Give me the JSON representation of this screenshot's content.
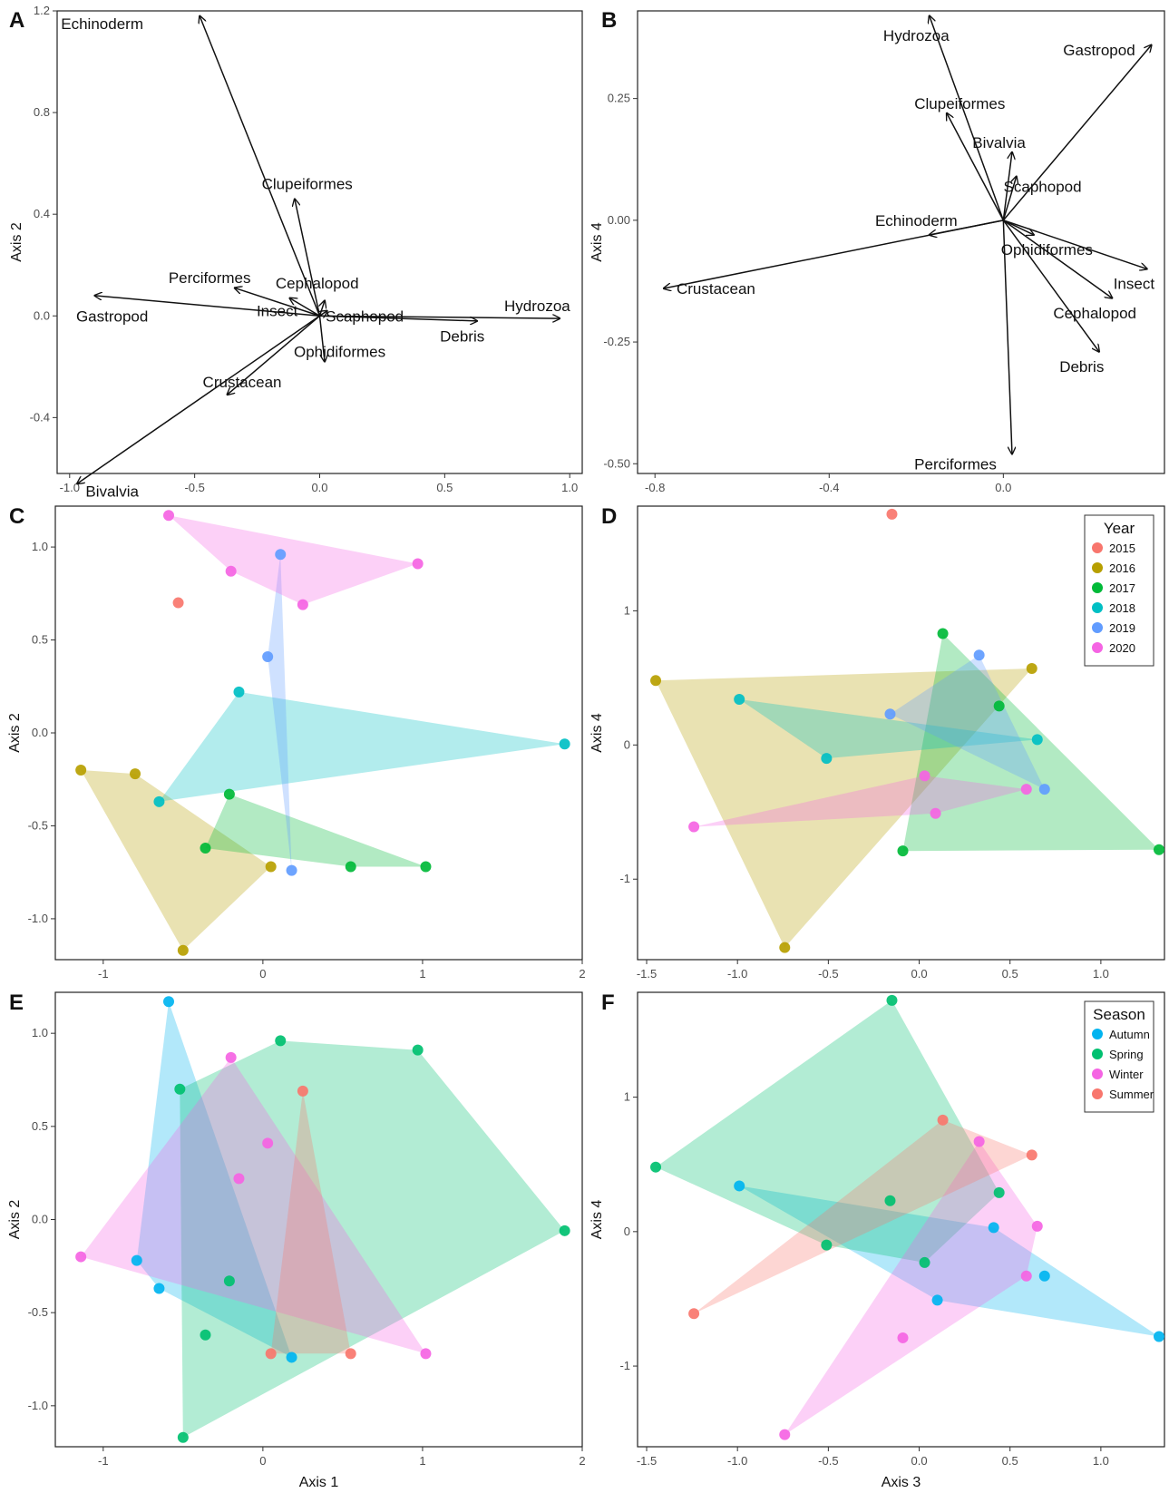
{
  "chart_data": [
    {
      "panel": "A",
      "type": "biplot",
      "xlabel": "",
      "ylabel": "Axis 2",
      "xlim": [
        -1.05,
        1.05
      ],
      "ylim": [
        -0.62,
        1.2
      ],
      "xticks": [
        -1.0,
        -0.5,
        0.0,
        0.5,
        1.0
      ],
      "xtick_labels": [
        "-1.0",
        "-0.5",
        "0.0",
        "0.5",
        "1.0"
      ],
      "yticks": [
        -0.4,
        0.0,
        0.4,
        0.8,
        1.2
      ],
      "ytick_labels": [
        "-0.4",
        "0.0",
        "0.4",
        "0.8",
        "1.2"
      ],
      "vectors": [
        {
          "label": "Echinoderm",
          "x": -0.48,
          "y": 1.18,
          "lx": -0.87,
          "ly": 1.15
        },
        {
          "label": "Clupeiformes",
          "x": -0.1,
          "y": 0.46,
          "lx": -0.05,
          "ly": 0.52
        },
        {
          "label": "Perciformes",
          "x": -0.34,
          "y": 0.11,
          "lx": -0.44,
          "ly": 0.15
        },
        {
          "label": "Cephalopod",
          "x": 0.02,
          "y": 0.06,
          "lx": -0.01,
          "ly": 0.13
        },
        {
          "label": "Insect",
          "x": -0.12,
          "y": 0.07,
          "lx": -0.17,
          "ly": 0.02
        },
        {
          "label": "Gastropod",
          "x": -0.9,
          "y": 0.08,
          "lx": -0.83,
          "ly": 0.0
        },
        {
          "label": "Scaphopod",
          "x": 0.03,
          "y": 0.02,
          "lx": 0.18,
          "ly": 0.0
        },
        {
          "label": "Hydrozoa",
          "x": 0.96,
          "y": -0.01,
          "lx": 0.87,
          "ly": 0.04
        },
        {
          "label": "Debris",
          "x": 0.63,
          "y": -0.02,
          "lx": 0.57,
          "ly": -0.08
        },
        {
          "label": "Ophidiformes",
          "x": 0.02,
          "y": -0.18,
          "lx": 0.08,
          "ly": -0.14
        },
        {
          "label": "Crustacean",
          "x": -0.37,
          "y": -0.31,
          "lx": -0.31,
          "ly": -0.26
        },
        {
          "label": "Bivalvia",
          "x": -0.97,
          "y": -0.66,
          "lx": -0.83,
          "ly": -0.69
        }
      ]
    },
    {
      "panel": "B",
      "type": "biplot",
      "xlabel": "",
      "ylabel": "Axis 4",
      "xlim": [
        -0.84,
        0.37
      ],
      "ylim": [
        -0.52,
        0.43
      ],
      "xticks": [
        -0.8,
        -0.4,
        0.0
      ],
      "xtick_labels": [
        "-0.8",
        "-0.4",
        "0.0"
      ],
      "yticks": [
        -0.5,
        -0.25,
        0.0,
        0.25
      ],
      "ytick_labels": [
        "-0.50",
        "-0.25",
        "0.00",
        "0.25"
      ],
      "vectors": [
        {
          "label": "Hydrozoa",
          "x": -0.17,
          "y": 0.42,
          "lx": -0.2,
          "ly": 0.38
        },
        {
          "label": "Gastropod",
          "x": 0.34,
          "y": 0.36,
          "lx": 0.22,
          "ly": 0.35
        },
        {
          "label": "Clupeiformes",
          "x": -0.13,
          "y": 0.22,
          "lx": -0.1,
          "ly": 0.24
        },
        {
          "label": "Bivalvia",
          "x": 0.02,
          "y": 0.14,
          "lx": -0.01,
          "ly": 0.16
        },
        {
          "label": "Scaphopod",
          "x": 0.03,
          "y": 0.09,
          "lx": 0.09,
          "ly": 0.07
        },
        {
          "label": "Echinoderm",
          "x": -0.17,
          "y": -0.03,
          "lx": -0.2,
          "ly": 0.0
        },
        {
          "label": "Ophidiformes",
          "x": 0.07,
          "y": -0.03,
          "lx": 0.1,
          "ly": -0.06
        },
        {
          "label": "Crustacean",
          "x": -0.78,
          "y": -0.14,
          "lx": -0.66,
          "ly": -0.14
        },
        {
          "label": "Insect",
          "x": 0.33,
          "y": -0.1,
          "lx": 0.3,
          "ly": -0.13
        },
        {
          "label": "Cephalopod",
          "x": 0.25,
          "y": -0.16,
          "lx": 0.21,
          "ly": -0.19
        },
        {
          "label": "Debris",
          "x": 0.22,
          "y": -0.27,
          "lx": 0.18,
          "ly": -0.3
        },
        {
          "label": "Perciformes",
          "x": 0.02,
          "y": -0.48,
          "lx": -0.11,
          "ly": -0.5
        }
      ]
    },
    {
      "panel": "C",
      "type": "scatter",
      "xlabel": "",
      "ylabel": "Axis 2",
      "xlim": [
        -1.3,
        2.0
      ],
      "ylim": [
        -1.22,
        1.22
      ],
      "xticks": [
        -1,
        0,
        1,
        2
      ],
      "xtick_labels": [
        "-1",
        "0",
        "1",
        "2"
      ],
      "yticks": [
        -1.0,
        -0.5,
        0.0,
        0.5,
        1.0
      ],
      "ytick_labels": [
        "-1.0",
        "-0.5",
        "0.0",
        "0.5",
        "1.0"
      ],
      "series": [
        {
          "name": "2015",
          "color": "#F8766D",
          "points": [
            [
              -0.53,
              0.7
            ]
          ],
          "hull": false
        },
        {
          "name": "2016",
          "color": "#B79F00",
          "points": [
            [
              -1.14,
              -0.2
            ],
            [
              -0.8,
              -0.22
            ],
            [
              0.05,
              -0.72
            ],
            [
              -0.5,
              -1.17
            ]
          ],
          "hull": true
        },
        {
          "name": "2017",
          "color": "#00BA38",
          "points": [
            [
              -0.21,
              -0.33
            ],
            [
              -0.36,
              -0.62
            ],
            [
              0.55,
              -0.72
            ],
            [
              1.02,
              -0.72
            ]
          ],
          "hull": true
        },
        {
          "name": "2018",
          "color": "#00BFC4",
          "points": [
            [
              -0.15,
              0.22
            ],
            [
              1.89,
              -0.06
            ],
            [
              -0.65,
              -0.37
            ]
          ],
          "hull": true
        },
        {
          "name": "2019",
          "color": "#619CFF",
          "points": [
            [
              0.11,
              0.96
            ],
            [
              0.03,
              0.41
            ],
            [
              0.18,
              -0.74
            ]
          ],
          "hull": true
        },
        {
          "name": "2020",
          "color": "#F564E3",
          "points": [
            [
              -0.59,
              1.17
            ],
            [
              -0.2,
              0.87
            ],
            [
              0.97,
              0.91
            ],
            [
              0.25,
              0.69
            ]
          ],
          "hull": true
        }
      ]
    },
    {
      "panel": "D",
      "type": "scatter",
      "xlabel": "",
      "ylabel": "Axis 4",
      "xlim": [
        -1.55,
        1.35
      ],
      "ylim": [
        -1.6,
        1.78
      ],
      "xticks": [
        -1.5,
        -1.0,
        -0.5,
        0.0,
        0.5,
        1.0
      ],
      "xtick_labels": [
        "-1.5",
        "-1.0",
        "-0.5",
        "0.0",
        "0.5",
        "1.0"
      ],
      "yticks": [
        -1,
        0,
        1
      ],
      "ytick_labels": [
        "-1",
        "0",
        "1"
      ],
      "legend": {
        "title": "Year",
        "position": "top-right"
      },
      "series": [
        {
          "name": "2015",
          "color": "#F8766D",
          "points": [
            [
              -0.15,
              1.72
            ]
          ],
          "hull": false
        },
        {
          "name": "2016",
          "color": "#B79F00",
          "points": [
            [
              -1.45,
              0.48
            ],
            [
              0.62,
              0.57
            ],
            [
              -0.74,
              -1.51
            ]
          ],
          "hull": true
        },
        {
          "name": "2017",
          "color": "#00BA38",
          "points": [
            [
              0.13,
              0.83
            ],
            [
              0.44,
              0.29
            ],
            [
              1.32,
              -0.78
            ],
            [
              -0.09,
              -0.79
            ]
          ],
          "hull": true
        },
        {
          "name": "2018",
          "color": "#00BFC4",
          "points": [
            [
              -0.99,
              0.34
            ],
            [
              0.65,
              0.04
            ],
            [
              -0.51,
              -0.1
            ]
          ],
          "hull": true
        },
        {
          "name": "2019",
          "color": "#619CFF",
          "points": [
            [
              0.33,
              0.67
            ],
            [
              -0.16,
              0.23
            ],
            [
              0.69,
              -0.33
            ]
          ],
          "hull": true
        },
        {
          "name": "2020",
          "color": "#F564E3",
          "points": [
            [
              -1.24,
              -0.61
            ],
            [
              0.03,
              -0.23
            ],
            [
              0.59,
              -0.33
            ],
            [
              0.09,
              -0.51
            ]
          ],
          "hull": true
        }
      ]
    },
    {
      "panel": "E",
      "type": "scatter",
      "xlabel": "Axis 1",
      "ylabel": "Axis 2",
      "xlim": [
        -1.3,
        2.0
      ],
      "ylim": [
        -1.22,
        1.22
      ],
      "xticks": [
        -1,
        0,
        1,
        2
      ],
      "xtick_labels": [
        "-1",
        "0",
        "1",
        "2"
      ],
      "yticks": [
        -1.0,
        -0.5,
        0.0,
        0.5,
        1.0
      ],
      "ytick_labels": [
        "-1.0",
        "-0.5",
        "0.0",
        "0.5",
        "1.0"
      ],
      "series": [
        {
          "name": "Autumn",
          "color": "#00B4F0",
          "points": [
            [
              -0.59,
              1.17
            ],
            [
              -0.79,
              -0.22
            ],
            [
              -0.65,
              -0.37
            ],
            [
              0.18,
              -0.74
            ]
          ],
          "hull": true
        },
        {
          "name": "Spring",
          "color": "#00C070",
          "points": [
            [
              0.11,
              0.96
            ],
            [
              0.97,
              0.91
            ],
            [
              1.89,
              -0.06
            ],
            [
              -0.5,
              -1.17
            ],
            [
              -0.52,
              0.7
            ],
            [
              -0.36,
              -0.62
            ],
            [
              -0.21,
              -0.33
            ]
          ],
          "hull": true
        },
        {
          "name": "Winter",
          "color": "#F564E3",
          "points": [
            [
              -0.2,
              0.87
            ],
            [
              -1.14,
              -0.2
            ],
            [
              1.02,
              -0.72
            ],
            [
              0.03,
              0.41
            ],
            [
              -0.15,
              0.22
            ]
          ],
          "hull": true
        },
        {
          "name": "Summer",
          "color": "#F8766D",
          "points": [
            [
              0.25,
              0.69
            ],
            [
              0.55,
              -0.72
            ],
            [
              0.05,
              -0.72
            ]
          ],
          "hull": true
        }
      ]
    },
    {
      "panel": "F",
      "type": "scatter",
      "xlabel": "Axis 3",
      "ylabel": "Axis 4",
      "xlim": [
        -1.55,
        1.35
      ],
      "ylim": [
        -1.6,
        1.78
      ],
      "xticks": [
        -1.5,
        -1.0,
        -0.5,
        0.0,
        0.5,
        1.0
      ],
      "xtick_labels": [
        "-1.5",
        "-1.0",
        "-0.5",
        "0.0",
        "0.5",
        "1.0"
      ],
      "yticks": [
        -1,
        0,
        1
      ],
      "ytick_labels": [
        "-1",
        "0",
        "1"
      ],
      "legend": {
        "title": "Season",
        "position": "top-right"
      },
      "series": [
        {
          "name": "Autumn",
          "color": "#00B4F0",
          "points": [
            [
              -0.99,
              0.34
            ],
            [
              0.41,
              0.03
            ],
            [
              0.69,
              -0.33
            ],
            [
              1.32,
              -0.78
            ],
            [
              0.1,
              -0.51
            ]
          ],
          "hull": true
        },
        {
          "name": "Spring",
          "color": "#00C070",
          "points": [
            [
              -0.15,
              1.72
            ],
            [
              -1.45,
              0.48
            ],
            [
              0.44,
              0.29
            ],
            [
              0.03,
              -0.23
            ],
            [
              -0.51,
              -0.1
            ],
            [
              -0.16,
              0.23
            ]
          ],
          "hull": true
        },
        {
          "name": "Winter",
          "color": "#F564E3",
          "points": [
            [
              0.33,
              0.67
            ],
            [
              0.65,
              0.04
            ],
            [
              0.59,
              -0.33
            ],
            [
              -0.09,
              -0.79
            ],
            [
              -0.74,
              -1.51
            ]
          ],
          "hull": true
        },
        {
          "name": "Summer",
          "color": "#F8766D",
          "points": [
            [
              0.13,
              0.83
            ],
            [
              0.62,
              0.57
            ],
            [
              -1.24,
              -0.61
            ]
          ],
          "hull": true
        }
      ]
    }
  ]
}
